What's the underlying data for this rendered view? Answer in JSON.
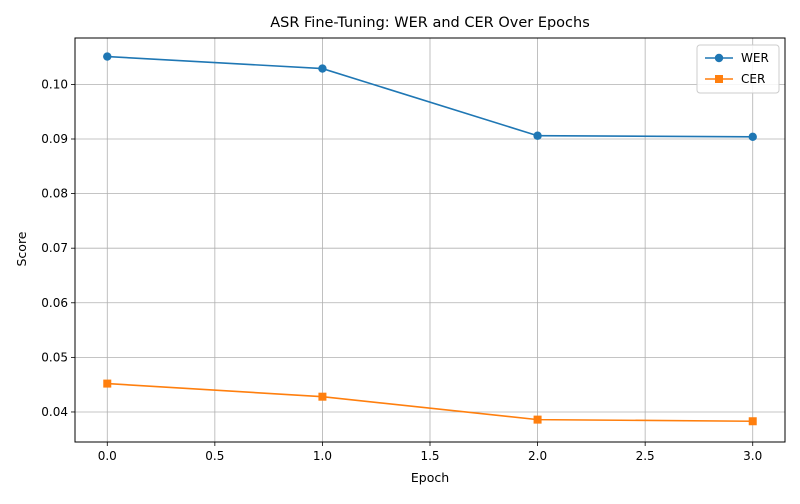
{
  "chart_data": {
    "type": "line",
    "title": "ASR Fine-Tuning: WER and CER Over Epochs",
    "xlabel": "Epoch",
    "ylabel": "Score",
    "x": [
      0,
      1,
      2,
      3
    ],
    "xlim": [
      -0.15,
      3.15
    ],
    "ylim": [
      0.0345,
      0.1085
    ],
    "xticks": [
      0.0,
      0.5,
      1.0,
      1.5,
      2.0,
      2.5,
      3.0
    ],
    "xtick_labels": [
      "0.0",
      "0.5",
      "1.0",
      "1.5",
      "2.0",
      "2.5",
      "3.0"
    ],
    "yticks": [
      0.04,
      0.05,
      0.06,
      0.07,
      0.08,
      0.09,
      0.1
    ],
    "ytick_labels": [
      "0.04",
      "0.05",
      "0.06",
      "0.07",
      "0.08",
      "0.09",
      "0.10"
    ],
    "grid": true,
    "legend_position": "top-right",
    "series": [
      {
        "name": "WER",
        "values": [
          0.1051,
          0.1029,
          0.0906,
          0.0904
        ],
        "color": "#1f77b4",
        "marker": "circle"
      },
      {
        "name": "CER",
        "values": [
          0.0452,
          0.0428,
          0.0386,
          0.0383
        ],
        "color": "#ff7f0e",
        "marker": "square"
      }
    ]
  }
}
